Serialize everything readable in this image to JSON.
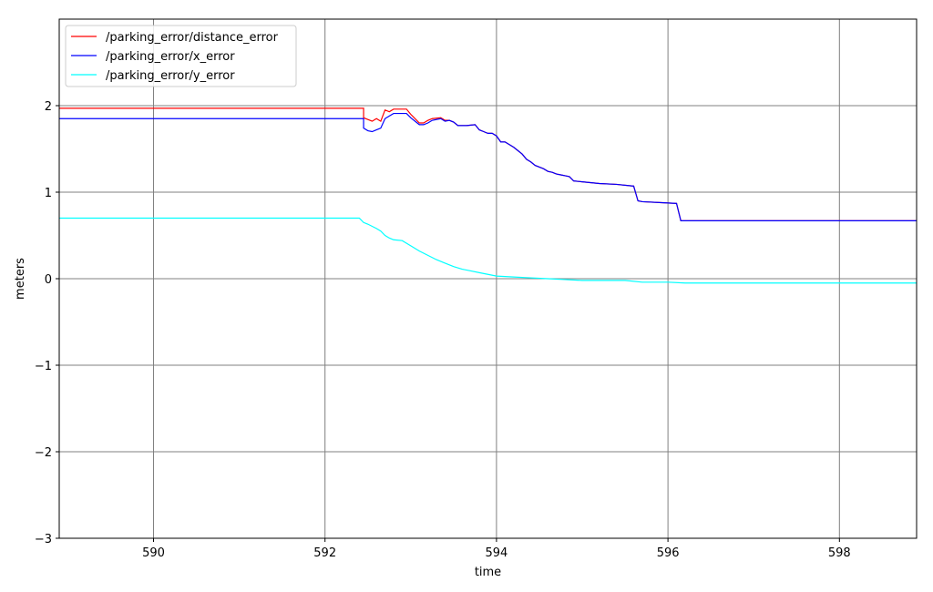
{
  "chart_data": {
    "type": "line",
    "title": "",
    "xlabel": "time",
    "ylabel": "meters",
    "xlim": [
      588.9,
      598.9
    ],
    "ylim": [
      -3,
      3
    ],
    "xticks": [
      590,
      592,
      594,
      596,
      598
    ],
    "yticks": [
      -3,
      -2,
      -1,
      0,
      1,
      2
    ],
    "ytick_labels": [
      "−3",
      "−2",
      "−1",
      "0",
      "1",
      "2"
    ],
    "grid": true,
    "legend_position": "top-left",
    "series": [
      {
        "name": "/parking_error/distance_error",
        "color": "#ff0000",
        "x": [
          588.9,
          592.45,
          592.45,
          592.55,
          592.6,
          592.65,
          592.7,
          592.75,
          592.8,
          592.95,
          593.0,
          593.1,
          593.15,
          593.2,
          593.25,
          593.35,
          593.4,
          593.45,
          593.5,
          593.55,
          593.65,
          593.75,
          593.8,
          593.85,
          593.9,
          593.95,
          594.0,
          594.05,
          594.1,
          594.15,
          594.2,
          594.25,
          594.3,
          594.35,
          594.4,
          594.45,
          594.5,
          594.55,
          594.6,
          594.65,
          594.7,
          594.75,
          594.8,
          594.85,
          594.9,
          595.0,
          595.2,
          595.4,
          595.6,
          595.65,
          595.7,
          595.9,
          596.1,
          596.15,
          596.2,
          596.5,
          597.0,
          598.0,
          598.9
        ],
        "y": [
          1.97,
          1.97,
          1.86,
          1.82,
          1.85,
          1.82,
          1.95,
          1.93,
          1.96,
          1.96,
          1.9,
          1.8,
          1.8,
          1.83,
          1.85,
          1.86,
          1.83,
          1.83,
          1.81,
          1.77,
          1.77,
          1.78,
          1.72,
          1.7,
          1.68,
          1.68,
          1.65,
          1.58,
          1.58,
          1.55,
          1.52,
          1.48,
          1.44,
          1.38,
          1.35,
          1.31,
          1.29,
          1.27,
          1.24,
          1.23,
          1.21,
          1.2,
          1.19,
          1.18,
          1.13,
          1.12,
          1.1,
          1.09,
          1.07,
          0.9,
          0.89,
          0.88,
          0.87,
          0.67,
          0.67,
          0.67,
          0.67,
          0.67,
          0.67
        ]
      },
      {
        "name": "/parking_error/x_error",
        "color": "#0000ff",
        "x": [
          588.9,
          592.45,
          592.45,
          592.5,
          592.55,
          592.6,
          592.65,
          592.7,
          592.75,
          592.8,
          592.95,
          593.0,
          593.1,
          593.15,
          593.2,
          593.25,
          593.35,
          593.4,
          593.45,
          593.5,
          593.55,
          593.65,
          593.75,
          593.8,
          593.85,
          593.9,
          593.95,
          594.0,
          594.05,
          594.1,
          594.15,
          594.2,
          594.25,
          594.3,
          594.35,
          594.4,
          594.45,
          594.5,
          594.55,
          594.6,
          594.65,
          594.7,
          594.75,
          594.8,
          594.85,
          594.9,
          595.0,
          595.2,
          595.4,
          595.6,
          595.65,
          595.7,
          595.9,
          596.1,
          596.15,
          596.2,
          596.5,
          597.0,
          598.0,
          598.9
        ],
        "y": [
          1.85,
          1.85,
          1.74,
          1.71,
          1.7,
          1.72,
          1.74,
          1.85,
          1.88,
          1.91,
          1.91,
          1.86,
          1.78,
          1.78,
          1.8,
          1.83,
          1.85,
          1.82,
          1.83,
          1.81,
          1.77,
          1.77,
          1.78,
          1.72,
          1.7,
          1.68,
          1.68,
          1.65,
          1.58,
          1.58,
          1.55,
          1.52,
          1.48,
          1.44,
          1.38,
          1.35,
          1.31,
          1.29,
          1.27,
          1.24,
          1.23,
          1.21,
          1.2,
          1.19,
          1.18,
          1.13,
          1.12,
          1.1,
          1.09,
          1.07,
          0.9,
          0.89,
          0.88,
          0.87,
          0.67,
          0.67,
          0.67,
          0.67,
          0.67,
          0.67
        ]
      },
      {
        "name": "/parking_error/y_error",
        "color": "#00ffff",
        "x": [
          588.9,
          592.4,
          592.45,
          592.5,
          592.6,
          592.65,
          592.7,
          592.75,
          592.8,
          592.9,
          593.0,
          593.1,
          593.2,
          593.3,
          593.4,
          593.5,
          593.6,
          593.7,
          593.8,
          593.9,
          594.0,
          594.2,
          594.4,
          594.6,
          594.8,
          595.0,
          595.5,
          595.7,
          596.0,
          596.2,
          597.0,
          598.0,
          598.9
        ],
        "y": [
          0.7,
          0.7,
          0.65,
          0.63,
          0.58,
          0.55,
          0.5,
          0.47,
          0.45,
          0.44,
          0.38,
          0.32,
          0.27,
          0.22,
          0.18,
          0.14,
          0.11,
          0.09,
          0.07,
          0.05,
          0.03,
          0.02,
          0.01,
          0.0,
          -0.01,
          -0.02,
          -0.02,
          -0.04,
          -0.04,
          -0.05,
          -0.05,
          -0.05,
          -0.05
        ]
      }
    ]
  }
}
